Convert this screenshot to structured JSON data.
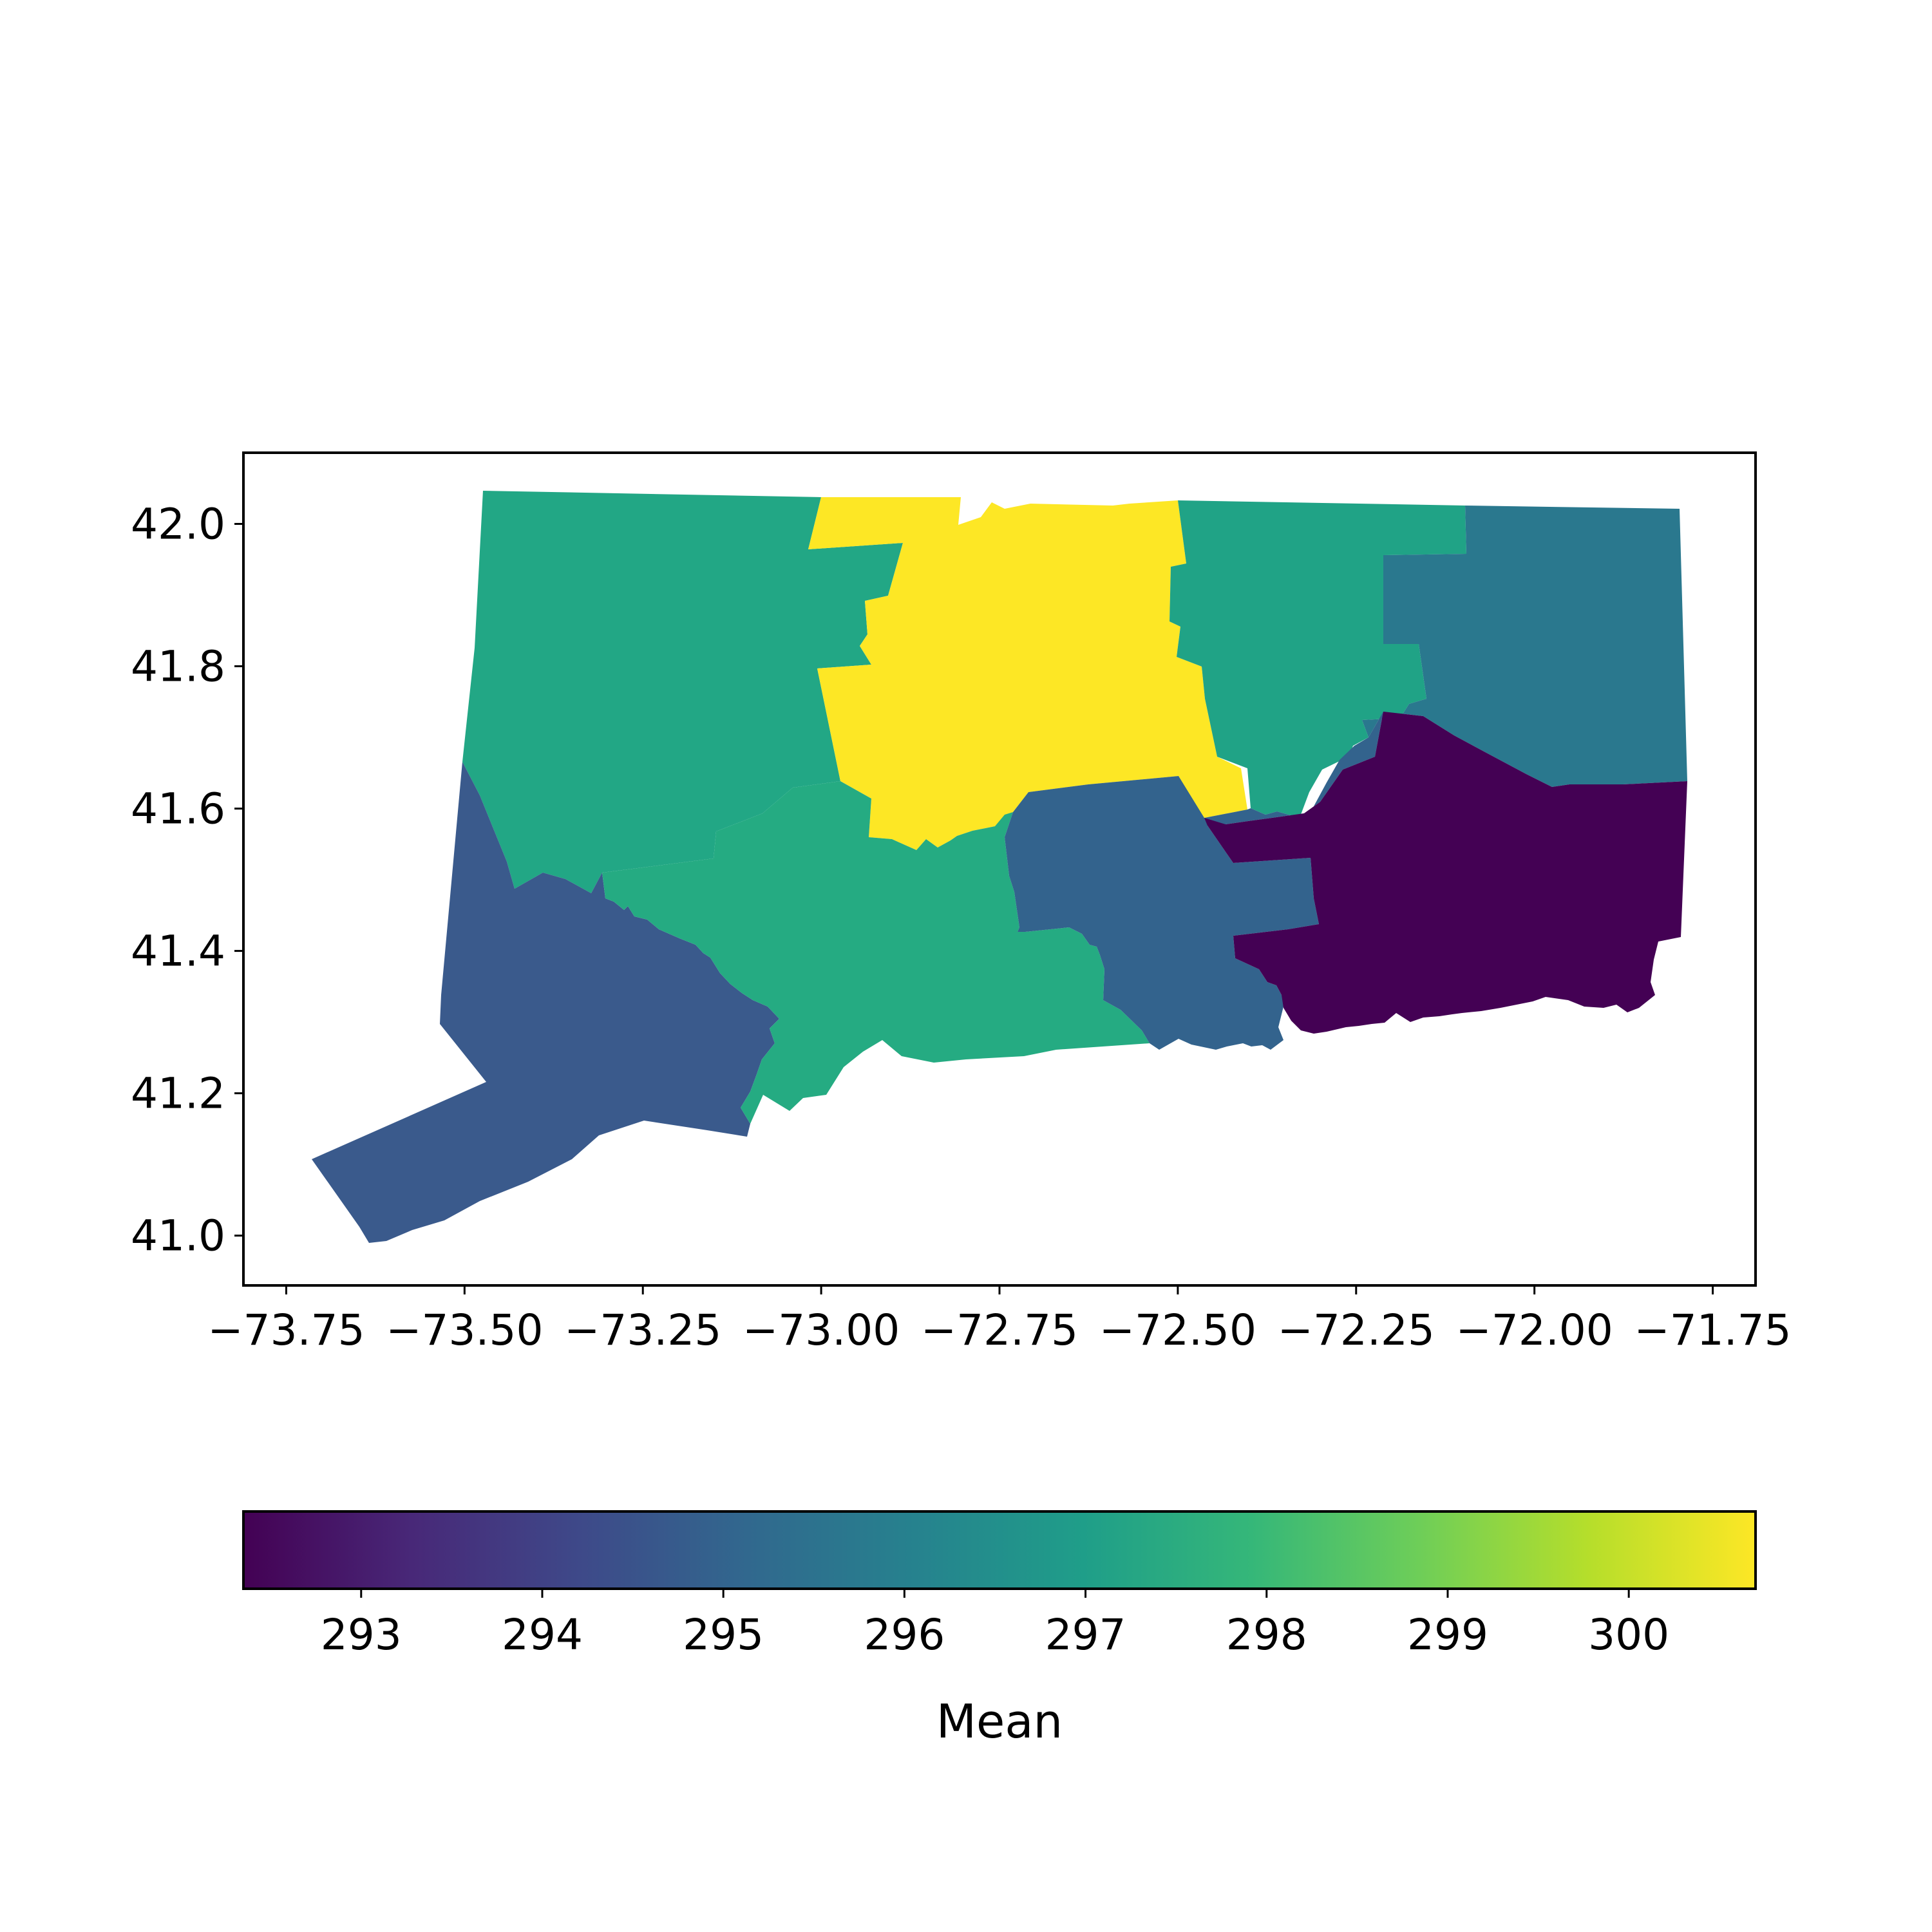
{
  "chart_data": {
    "type": "choropleth",
    "title": "",
    "xlabel": "",
    "ylabel": "",
    "xlim": [
      -73.81,
      -71.69
    ],
    "ylim": [
      40.93,
      42.1
    ],
    "x_ticks": [
      -73.75,
      -73.5,
      -73.25,
      -73.0,
      -72.75,
      -72.5,
      -72.25,
      -72.0,
      -71.75
    ],
    "x_tick_labels": [
      "−73.75",
      "−73.50",
      "−73.25",
      "−73.00",
      "−72.75",
      "−72.50",
      "−72.25",
      "−72.00",
      "−71.75"
    ],
    "y_ticks": [
      41.0,
      41.2,
      41.4,
      41.6,
      41.8,
      42.0
    ],
    "y_tick_labels": [
      "41.0",
      "41.2",
      "41.4",
      "41.6",
      "41.8",
      "42.0"
    ],
    "grid": false,
    "colormap": "viridis",
    "colorbar": {
      "label": "Mean",
      "orientation": "horizontal",
      "placement": "bottom",
      "range": [
        292.35,
        300.7
      ],
      "ticks": [
        293,
        294,
        295,
        296,
        297,
        298,
        299,
        300
      ],
      "tick_labels": [
        "293",
        "294",
        "295",
        "296",
        "297",
        "298",
        "299",
        "300"
      ]
    },
    "regions": [
      {
        "value": 297.6,
        "color": "#22a785"
      },
      {
        "value": 300.7,
        "color": "#fde725"
      },
      {
        "value": 296.9,
        "color": "#20a386"
      },
      {
        "value": 295.9,
        "color": "#2a788e"
      },
      {
        "value": 294.4,
        "color": "#3a5a8c"
      },
      {
        "value": 297.7,
        "color": "#25ab82"
      },
      {
        "value": 295.6,
        "color": "#33638d"
      },
      {
        "value": 292.35,
        "color": "#440154"
      }
    ],
    "viridis_stops": [
      "#440154",
      "#482878",
      "#3e4989",
      "#31688e",
      "#26828e",
      "#1f9e89",
      "#35b779",
      "#6ece58",
      "#b5de2b",
      "#fde725"
    ]
  }
}
